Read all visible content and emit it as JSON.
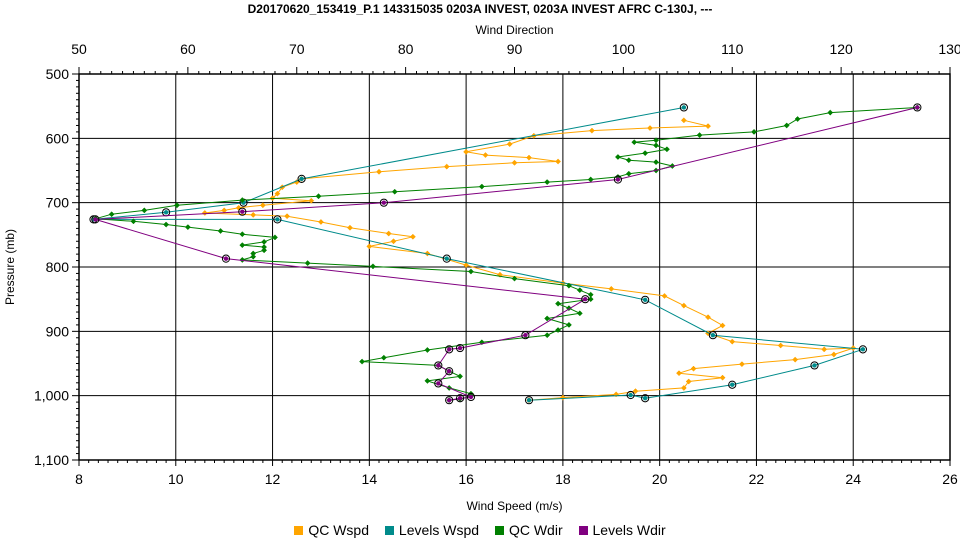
{
  "chart_data": {
    "type": "scatter",
    "title": "D20170620_153419_P.1 143315035 0203A INVEST, 0203A INVEST AFRC C-130J, ---",
    "x_bottom": {
      "label": "Wind Speed (m/s)",
      "min": 8,
      "max": 26,
      "ticks": [
        "8",
        "10",
        "12",
        "14",
        "16",
        "18",
        "20",
        "22",
        "24",
        "26"
      ]
    },
    "x_top": {
      "label": "Wind Direction",
      "min": 50,
      "max": 130,
      "ticks": [
        "50",
        "60",
        "70",
        "80",
        "90",
        "100",
        "110",
        "120",
        "130"
      ]
    },
    "y": {
      "label": "Pressure (mb)",
      "min": 500,
      "max": 1100,
      "inverted": true,
      "ticks": [
        "500",
        "600",
        "700",
        "800",
        "900",
        "1,000",
        "1,100"
      ]
    },
    "grid": true,
    "legend_position": "bottom",
    "series": [
      {
        "name": "QC Wspd",
        "color": "#FFA500",
        "axis": "bottom",
        "marker": "diamond",
        "points": [
          [
            20.5,
            572
          ],
          [
            21,
            581
          ],
          [
            19.8,
            584
          ],
          [
            18.6,
            588
          ],
          [
            17.4,
            596
          ],
          [
            16.9,
            609
          ],
          [
            16,
            621
          ],
          [
            16.4,
            626
          ],
          [
            17.3,
            630
          ],
          [
            17.9,
            636
          ],
          [
            17.0,
            638
          ],
          [
            15.6,
            644
          ],
          [
            14.2,
            652
          ],
          [
            12.6,
            663
          ],
          [
            12.5,
            668
          ],
          [
            12.2,
            676
          ],
          [
            12.1,
            686
          ],
          [
            12.0,
            693
          ],
          [
            12.8,
            697
          ],
          [
            11.8,
            704
          ],
          [
            11.3,
            708
          ],
          [
            11.0,
            712
          ],
          [
            10.6,
            716
          ],
          [
            11.6,
            719
          ],
          [
            12.3,
            721
          ],
          [
            13.0,
            730
          ],
          [
            13.6,
            739
          ],
          [
            14.4,
            748
          ],
          [
            14.9,
            753
          ],
          [
            14.5,
            760
          ],
          [
            14.0,
            768
          ],
          [
            15.2,
            779
          ],
          [
            16.0,
            797
          ],
          [
            16.7,
            812
          ],
          [
            18.0,
            825
          ],
          [
            19.0,
            834
          ],
          [
            20.1,
            845
          ],
          [
            20.5,
            860
          ],
          [
            21.0,
            878
          ],
          [
            21.3,
            891
          ],
          [
            21.0,
            903
          ],
          [
            21.5,
            916
          ],
          [
            22.5,
            922
          ],
          [
            23.4,
            928
          ],
          [
            24.0,
            926
          ],
          [
            23.6,
            936
          ],
          [
            22.8,
            944
          ],
          [
            21.7,
            951
          ],
          [
            20.7,
            958
          ],
          [
            20.4,
            965
          ],
          [
            21.3,
            972
          ],
          [
            20.6,
            978
          ],
          [
            20.5,
            988
          ],
          [
            19.5,
            993
          ],
          [
            19.1,
            998
          ],
          [
            18.0,
            1003
          ],
          [
            17.3,
            1007
          ]
        ]
      },
      {
        "name": "Levels Wspd",
        "color": "#008B8B",
        "axis": "bottom",
        "marker": "circle",
        "points": [
          [
            20.5,
            552
          ],
          [
            12.6,
            663
          ],
          [
            11.4,
            700
          ],
          [
            9.8,
            715
          ],
          [
            8.3,
            726
          ],
          [
            12.1,
            726
          ],
          [
            15.6,
            787
          ],
          [
            19.7,
            851
          ],
          [
            21.1,
            906
          ],
          [
            24.2,
            928
          ],
          [
            23.2,
            953
          ],
          [
            21.5,
            983
          ],
          [
            19.7,
            1004
          ],
          [
            19.4,
            999
          ],
          [
            17.3,
            1007
          ]
        ]
      },
      {
        "name": "QC Wdir",
        "color": "#008000",
        "axis": "top",
        "marker": "diamond",
        "points": [
          [
            127,
            552
          ],
          [
            119,
            560
          ],
          [
            116,
            570
          ],
          [
            115,
            580
          ],
          [
            112,
            590
          ],
          [
            107,
            595
          ],
          [
            103,
            603
          ],
          [
            101,
            606
          ],
          [
            103,
            611
          ],
          [
            104,
            617
          ],
          [
            102,
            623
          ],
          [
            99.5,
            629
          ],
          [
            100.5,
            634
          ],
          [
            103,
            637
          ],
          [
            104.5,
            643
          ],
          [
            103,
            650
          ],
          [
            100.5,
            655
          ],
          [
            99.5,
            660
          ],
          [
            97,
            664
          ],
          [
            93,
            668
          ],
          [
            87,
            675
          ],
          [
            79,
            683
          ],
          [
            72,
            690
          ],
          [
            65,
            696
          ],
          [
            59,
            704
          ],
          [
            56,
            712
          ],
          [
            53,
            718
          ],
          [
            51.5,
            725
          ],
          [
            55,
            729
          ],
          [
            58,
            734
          ],
          [
            60,
            738
          ],
          [
            63,
            744
          ],
          [
            65,
            749
          ],
          [
            68,
            754
          ],
          [
            67,
            761
          ],
          [
            65,
            766
          ],
          [
            67,
            769
          ],
          [
            67,
            774
          ],
          [
            66,
            779
          ],
          [
            66,
            784
          ],
          [
            65,
            789
          ],
          [
            71,
            794
          ],
          [
            77,
            799
          ],
          [
            86,
            807
          ],
          [
            90,
            818
          ],
          [
            95,
            829
          ],
          [
            96,
            836
          ],
          [
            97,
            843
          ],
          [
            97,
            850
          ],
          [
            94,
            857
          ],
          [
            95,
            864
          ],
          [
            96,
            872
          ],
          [
            93,
            880
          ],
          [
            95,
            890
          ],
          [
            94,
            898
          ],
          [
            93,
            906
          ],
          [
            87,
            917
          ],
          [
            82,
            929
          ],
          [
            78,
            941
          ],
          [
            76,
            947
          ],
          [
            83,
            953
          ],
          [
            84,
            962
          ],
          [
            85,
            970
          ],
          [
            82,
            977
          ],
          [
            84,
            988
          ],
          [
            86,
            997
          ],
          [
            86,
            1001
          ],
          [
            85,
            1005
          ],
          [
            84,
            1007
          ]
        ]
      },
      {
        "name": "Levels Wdir",
        "color": "#800080",
        "axis": "top",
        "marker": "circle",
        "points": [
          [
            127,
            552
          ],
          [
            99.5,
            664
          ],
          [
            78,
            700
          ],
          [
            65,
            714
          ],
          [
            51.5,
            726
          ],
          [
            63.5,
            787
          ],
          [
            96.5,
            850
          ],
          [
            91,
            906
          ],
          [
            85,
            926
          ],
          [
            84,
            928
          ],
          [
            83,
            953
          ],
          [
            84,
            962
          ],
          [
            83,
            981
          ],
          [
            86,
            1002
          ],
          [
            84,
            1007
          ],
          [
            85,
            1004
          ]
        ]
      }
    ]
  }
}
